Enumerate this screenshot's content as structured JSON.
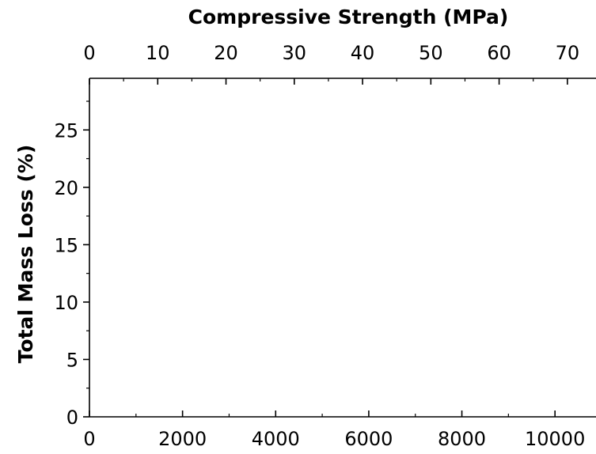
{
  "chart_data": {
    "type": "scatter",
    "title": "",
    "xlabel": "",
    "x2label": "Compressive Strength (MPa)",
    "ylabel": "Total Mass Loss (%)",
    "xlim": [
      0,
      11000
    ],
    "x2lim": [
      0,
      75
    ],
    "ylim": [
      0,
      29.5
    ],
    "x_ticks": [
      0,
      2000,
      4000,
      6000,
      8000,
      10000
    ],
    "x2_ticks": [
      0,
      10,
      20,
      30,
      40,
      50,
      60,
      70
    ],
    "y_ticks": [
      0,
      5,
      10,
      15,
      20,
      25
    ],
    "grid": false,
    "legend": "none",
    "series": [],
    "colors": {
      "axis": "#000000",
      "background": "#ffffff"
    }
  }
}
